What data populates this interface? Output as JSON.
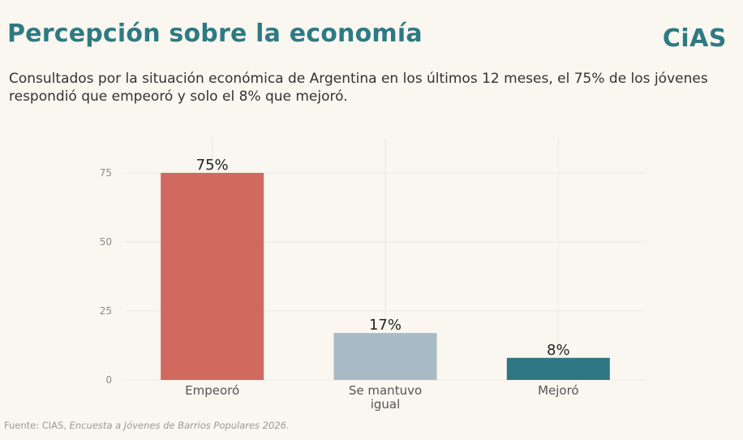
{
  "header": {
    "title": "Percepción sobre la economía",
    "logo_text": "CiAS",
    "subtitle": "Consultados por la situación económica de Argentina en los últimos 12 meses, el 75% de los jóvenes respondió que empeoró y solo el 8% que mejoró."
  },
  "footer": {
    "source_prefix": "Fuente: CIAS, ",
    "source_title": "Encuesta a Jóvenes de Barrios Populares 2026."
  },
  "colors": {
    "brand": "#2e7a82",
    "background": "#faf6f0"
  },
  "chart_data": {
    "type": "bar",
    "title": "",
    "xlabel": "",
    "ylabel": "",
    "categories": [
      [
        "Empeoró"
      ],
      [
        "Se mantuvo",
        "igual"
      ],
      [
        "Mejoró"
      ]
    ],
    "values": [
      75,
      17,
      8
    ],
    "data_labels": [
      "75%",
      "17%",
      "8%"
    ],
    "colors": [
      "#d0695e",
      "#a8bac3",
      "#2e7682"
    ],
    "ylim": [
      0,
      80
    ],
    "yticks": [
      0,
      25,
      50,
      75
    ],
    "grid": true,
    "legend": "none"
  }
}
